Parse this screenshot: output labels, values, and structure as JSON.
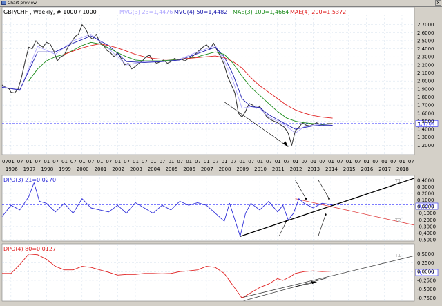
{
  "window": {
    "title": "Chart preview",
    "close_label": "x"
  },
  "colors": {
    "bg": "#ffffff",
    "grid": "#c9d8e8",
    "price": "#3a3a3a",
    "mvg3": "#b0a8ff",
    "mvg4": "#2020b0",
    "mae3": "#1c8c1c",
    "mae4": "#e02020",
    "dpo3": "#2d2dd8",
    "dpo4": "#e02020",
    "cur": "#3030ff"
  },
  "header": {
    "symbol": "GBP/CHF , Weekly, # 1000 / 1000",
    "mvg3": "MVG(3) 23=1,4476",
    "mvg4": "MVG(4) 50=1,4482",
    "mae3": "MAE(3) 100=1,4664",
    "mae4": "MAE(4) 200=1,5372"
  },
  "panel2": {
    "title": "DPO(3) 21=0,0270",
    "current": "0,0270",
    "t1": "T1",
    "t2": "T2"
  },
  "panel3": {
    "title": "DPO(4) 80=0,0127",
    "current": "0,0127",
    "t1": "T1"
  },
  "price_panel": {
    "current": "1,4704"
  },
  "chart_data": [
    {
      "type": "line",
      "title": "GBP/CHF , Weekly, # 1000 / 1000",
      "ylim": [
        1.1,
        2.8
      ],
      "yticks": [
        "2,7000",
        "2,6000",
        "2,5000",
        "2,4000",
        "2,3000",
        "2,2000",
        "2,1000",
        "2,0000",
        "1,9000",
        "1,8000",
        "1,7000",
        "1,6000",
        "1,5000",
        "1,4000",
        "1,3000",
        "1,2000"
      ],
      "ytick_values": [
        2.7,
        2.6,
        2.5,
        2.4,
        2.3,
        2.2,
        2.1,
        2.0,
        1.9,
        1.8,
        1.7,
        1.6,
        1.5,
        1.4,
        1.3,
        1.2
      ],
      "xlim": [
        1995.5,
        2018.7
      ],
      "month_ticks": [
        "01",
        "07"
      ],
      "years": [
        "1996",
        "1997",
        "1998",
        "1999",
        "2000",
        "2001",
        "2002",
        "2003",
        "2004",
        "2005",
        "2006",
        "2007",
        "2008",
        "2009",
        "2010",
        "2011",
        "2012",
        "2013",
        "2014",
        "2015",
        "2016",
        "2017",
        "2018"
      ],
      "series": [
        {
          "x": [
            1995.5,
            1995.7,
            1995.9,
            1996.0,
            1996.2,
            1996.4,
            1996.6,
            1996.8,
            1997.0,
            1997.2,
            1997.4,
            1997.6,
            1997.8,
            1998.0,
            1998.2,
            1998.4,
            1998.6,
            1998.8,
            1999.0,
            1999.2,
            1999.4,
            1999.6,
            1999.8,
            2000.0,
            2000.2,
            2000.4,
            2000.6,
            2000.8,
            2001.0,
            2001.2,
            2001.4,
            2001.6,
            2001.8,
            2002.0,
            2002.2,
            2002.4,
            2002.6,
            2002.8,
            2003.0,
            2003.2,
            2003.4,
            2003.6,
            2003.8,
            2004.0,
            2004.2,
            2004.4,
            2004.6,
            2004.8,
            2005.0,
            2005.2,
            2005.4,
            2005.6,
            2005.8,
            2006.0,
            2006.2,
            2006.4,
            2006.6,
            2006.8,
            2007.0,
            2007.2,
            2007.4,
            2007.6,
            2007.8,
            2008.0,
            2008.2,
            2008.4,
            2008.6,
            2008.8,
            2009.0,
            2009.2,
            2009.4,
            2009.6,
            2009.8,
            2010.0,
            2010.2,
            2010.4,
            2010.6,
            2010.8,
            2011.0,
            2011.2,
            2011.4,
            2011.6,
            2011.8,
            2012.0,
            2012.2,
            2012.4,
            2012.6,
            2012.8,
            2013.0,
            2013.2,
            2013.4,
            2013.6,
            2013.8,
            2014.0,
            2014.1
          ],
          "values": [
            1.95,
            1.92,
            1.9,
            1.86,
            1.85,
            1.9,
            2.05,
            2.25,
            2.42,
            2.4,
            2.5,
            2.45,
            2.42,
            2.48,
            2.46,
            2.38,
            2.25,
            2.3,
            2.32,
            2.42,
            2.48,
            2.55,
            2.58,
            2.7,
            2.65,
            2.55,
            2.52,
            2.58,
            2.48,
            2.45,
            2.38,
            2.35,
            2.3,
            2.35,
            2.28,
            2.2,
            2.22,
            2.15,
            2.18,
            2.22,
            2.25,
            2.3,
            2.32,
            2.25,
            2.22,
            2.24,
            2.26,
            2.22,
            2.24,
            2.28,
            2.26,
            2.27,
            2.25,
            2.28,
            2.3,
            2.34,
            2.38,
            2.42,
            2.45,
            2.4,
            2.47,
            2.38,
            2.3,
            2.2,
            2.05,
            1.95,
            1.85,
            1.6,
            1.55,
            1.62,
            1.72,
            1.7,
            1.66,
            1.68,
            1.62,
            1.55,
            1.52,
            1.5,
            1.48,
            1.45,
            1.42,
            1.35,
            1.2,
            1.38,
            1.42,
            1.48,
            1.45,
            1.44,
            1.46,
            1.48,
            1.46,
            1.45,
            1.47,
            1.47,
            1.47
          ]
        },
        {
          "name": "MVG(3) 23",
          "x": [
            1995.5,
            1996.5,
            1997.5,
            1998.5,
            1999.5,
            2000.5,
            2001.5,
            2002.5,
            2003.5,
            2004.5,
            2005.5,
            2006.5,
            2007.5,
            2008.0,
            2008.5,
            2009.0,
            2009.5,
            2010.0,
            2010.5,
            2011.0,
            2011.5,
            2012.0,
            2012.5,
            2013.0,
            2013.5,
            2014.1
          ],
          "values": [
            1.93,
            1.88,
            2.43,
            2.33,
            2.5,
            2.58,
            2.4,
            2.2,
            2.24,
            2.24,
            2.27,
            2.36,
            2.44,
            2.25,
            2.0,
            1.66,
            1.68,
            1.66,
            1.55,
            1.5,
            1.44,
            1.35,
            1.43,
            1.45,
            1.46,
            1.4476
          ]
        },
        {
          "name": "MVG(4) 50",
          "x": [
            1995.5,
            1996.5,
            1997.5,
            1998.5,
            1999.5,
            2000.5,
            2001.5,
            2002.5,
            2003.5,
            2004.5,
            2005.5,
            2006.5,
            2007.5,
            2008.0,
            2008.5,
            2009.0,
            2009.5,
            2010.0,
            2010.5,
            2011.0,
            2011.5,
            2012.0,
            2012.5,
            2013.0,
            2013.5,
            2014.1
          ],
          "values": [
            1.92,
            1.89,
            2.36,
            2.36,
            2.47,
            2.56,
            2.44,
            2.24,
            2.23,
            2.24,
            2.26,
            2.34,
            2.42,
            2.3,
            2.08,
            1.78,
            1.68,
            1.67,
            1.58,
            1.52,
            1.46,
            1.4,
            1.42,
            1.44,
            1.45,
            1.4482
          ]
        },
        {
          "name": "MAE(3) 100",
          "x": [
            1997.0,
            1997.5,
            1998.0,
            1998.5,
            1999.0,
            1999.5,
            2000.0,
            2000.5,
            2001.0,
            2001.5,
            2002.0,
            2002.5,
            2003.0,
            2003.5,
            2004.0,
            2004.5,
            2005.0,
            2005.5,
            2006.0,
            2006.5,
            2007.0,
            2007.5,
            2008.0,
            2008.5,
            2009.0,
            2009.5,
            2010.0,
            2010.5,
            2011.0,
            2011.5,
            2012.0,
            2012.5,
            2013.0,
            2013.5,
            2014.1
          ],
          "values": [
            2.0,
            2.15,
            2.25,
            2.3,
            2.33,
            2.38,
            2.44,
            2.48,
            2.46,
            2.41,
            2.35,
            2.3,
            2.26,
            2.25,
            2.25,
            2.25,
            2.26,
            2.27,
            2.28,
            2.3,
            2.33,
            2.36,
            2.33,
            2.22,
            2.06,
            1.92,
            1.82,
            1.72,
            1.62,
            1.54,
            1.5,
            1.48,
            1.47,
            1.46,
            1.4664
          ]
        },
        {
          "name": "MAE(4) 200",
          "x": [
            1999.0,
            1999.5,
            2000.0,
            2000.5,
            2001.0,
            2001.5,
            2002.0,
            2002.5,
            2003.0,
            2003.5,
            2004.0,
            2004.5,
            2005.0,
            2005.5,
            2006.0,
            2006.5,
            2007.0,
            2007.5,
            2008.0,
            2008.5,
            2009.0,
            2009.5,
            2010.0,
            2010.5,
            2011.0,
            2011.5,
            2012.0,
            2012.5,
            2013.0,
            2013.5,
            2014.1
          ],
          "values": [
            2.33,
            2.37,
            2.41,
            2.44,
            2.46,
            2.44,
            2.41,
            2.37,
            2.33,
            2.3,
            2.28,
            2.27,
            2.27,
            2.27,
            2.28,
            2.29,
            2.3,
            2.31,
            2.29,
            2.24,
            2.16,
            2.04,
            1.94,
            1.86,
            1.78,
            1.7,
            1.64,
            1.6,
            1.57,
            1.55,
            1.5372
          ]
        }
      ],
      "current_value": 1.4704
    },
    {
      "type": "line",
      "title": "DPO(3) 21=0,0270",
      "ylim": [
        -0.5,
        0.45
      ],
      "yticks": [
        "0,4000",
        "0,3000",
        "0,2000",
        "0,1000",
        "0,0000",
        "-0,1000",
        "-0,2000",
        "-0,3000",
        "-0,4000",
        "-0,5000"
      ],
      "ytick_values": [
        0.4,
        0.3,
        0.2,
        0.1,
        0.0,
        -0.1,
        -0.2,
        -0.3,
        -0.4,
        -0.5
      ],
      "series": [
        {
          "name": "DPO(3) 21",
          "x": [
            1995.5,
            1996.0,
            1996.5,
            1997.0,
            1997.3,
            1997.6,
            1998.0,
            1998.5,
            1999.0,
            1999.5,
            2000.0,
            2000.5,
            2001.0,
            2001.5,
            2002.0,
            2002.5,
            2003.0,
            2003.5,
            2004.0,
            2004.5,
            2005.0,
            2005.5,
            2006.0,
            2006.5,
            2007.0,
            2007.5,
            2008.0,
            2008.3,
            2008.6,
            2008.9,
            2009.2,
            2009.5,
            2010.0,
            2010.5,
            2011.0,
            2011.3,
            2011.6,
            2011.9,
            2012.2,
            2012.5,
            2013.0,
            2013.5,
            2014.1
          ],
          "values": [
            -0.15,
            0.02,
            -0.05,
            0.15,
            0.36,
            0.08,
            0.05,
            -0.08,
            0.05,
            -0.1,
            0.12,
            -0.02,
            -0.05,
            -0.08,
            0.02,
            -0.1,
            0.06,
            -0.02,
            -0.1,
            0.02,
            -0.05,
            0.08,
            0.02,
            0.06,
            0.02,
            -0.1,
            -0.22,
            0.05,
            -0.2,
            -0.45,
            -0.1,
            0.05,
            -0.05,
            0.08,
            -0.08,
            0.02,
            -0.2,
            -0.1,
            0.12,
            0.05,
            -0.02,
            0.05,
            0.027
          ]
        }
      ],
      "trendlines": [
        {
          "name": "T1",
          "x": [
            2008.9,
            2018.7
          ],
          "values": [
            -0.45,
            0.43
          ]
        },
        {
          "name": "T2",
          "x": [
            2012.0,
            2018.7
          ],
          "values": [
            0.12,
            -0.28
          ]
        }
      ]
    },
    {
      "type": "line",
      "title": "DPO(4) 80=0,0127",
      "ylim": [
        -0.8,
        0.75
      ],
      "yticks": [
        "0,5000",
        "0,2500",
        "0,0000",
        "-0,2500",
        "-0,5000",
        "-0,7500"
      ],
      "ytick_values": [
        0.5,
        0.25,
        0.0,
        -0.25,
        -0.5,
        -0.75
      ],
      "series": [
        {
          "name": "DPO(4) 80",
          "x": [
            1995.5,
            1996.0,
            1996.5,
            1997.0,
            1997.5,
            1998.0,
            1998.5,
            1999.0,
            1999.5,
            2000.0,
            2000.5,
            2001.0,
            2001.5,
            2002.0,
            2002.5,
            2003.0,
            2003.5,
            2004.0,
            2004.5,
            2005.0,
            2005.5,
            2006.0,
            2006.5,
            2007.0,
            2007.5,
            2008.0,
            2008.5,
            2009.0,
            2009.5,
            2010.0,
            2010.5,
            2011.0,
            2011.3,
            2011.7,
            2012.0,
            2012.5,
            2013.0,
            2013.5,
            2014.1
          ],
          "values": [
            -0.05,
            -0.05,
            0.2,
            0.5,
            0.48,
            0.35,
            0.15,
            0.05,
            0.05,
            0.15,
            0.12,
            0.05,
            -0.02,
            -0.1,
            -0.08,
            -0.08,
            -0.05,
            -0.05,
            -0.06,
            -0.05,
            0.0,
            0.02,
            0.05,
            0.15,
            0.12,
            -0.05,
            -0.4,
            -0.75,
            -0.6,
            -0.45,
            -0.35,
            -0.2,
            -0.25,
            -0.15,
            -0.05,
            0.0,
            0.02,
            0.0,
            0.013
          ]
        }
      ],
      "trendlines": [
        {
          "name": "T1",
          "x": [
            2008.9,
            2018.7
          ],
          "values": [
            -0.75,
            0.45
          ]
        }
      ]
    }
  ]
}
